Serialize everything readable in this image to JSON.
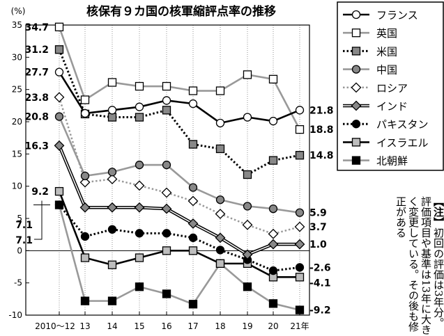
{
  "chart_data": {
    "type": "line",
    "title": "核保有９カ国の核軍縮評点率の推移",
    "y_unit": "(%)",
    "ylim": [
      -10,
      35
    ],
    "y_ticks": [
      "35",
      "30",
      "25",
      "20",
      "15",
      "10",
      "5",
      "0",
      "-5",
      "-10"
    ],
    "x_ticks": [
      "2010～12",
      "13",
      "14",
      "15",
      "16",
      "17",
      "18",
      "19",
      "20",
      "21年"
    ],
    "grid": "vertical dotted",
    "legend_position": "top-right",
    "series": [
      {
        "name": "フランス",
        "marker": "circle-open",
        "line": "solid-black",
        "color": "#000000",
        "values": [
          27.7,
          21.3,
          21.8,
          22.3,
          23.3,
          22.8,
          19.8,
          20.7,
          20.1,
          21.8
        ],
        "start_label": "27.7",
        "end_label": "21.8"
      },
      {
        "name": "英国",
        "marker": "square-open",
        "line": "solid-gray",
        "color": "#a0a0a0",
        "values": [
          34.7,
          23.4,
          26.1,
          25.5,
          25.5,
          24.8,
          24.8,
          27.3,
          26.6,
          18.8
        ],
        "start_label": "34.7",
        "end_label": "18.8"
      },
      {
        "name": "米国",
        "marker": "square-gray",
        "line": "dotted",
        "color": "#000000",
        "values": [
          31.2,
          21.2,
          20.7,
          20.7,
          21.8,
          16.5,
          15.8,
          11.8,
          14.0,
          14.8
        ],
        "start_label": "31.2",
        "end_label": "14.8"
      },
      {
        "name": "中国",
        "marker": "circle-gray",
        "line": "solid-gray",
        "color": "#7a7a7a",
        "values": [
          20.8,
          11.6,
          12.2,
          13.3,
          13.3,
          9.8,
          7.9,
          6.9,
          6.5,
          5.9
        ],
        "start_label": "20.8",
        "end_label": "5.9"
      },
      {
        "name": "ロシア",
        "marker": "diamond-open",
        "line": "dotted-gray",
        "color": "#909090",
        "values": [
          23.8,
          10.6,
          11.1,
          10.1,
          9.0,
          7.7,
          5.7,
          4.0,
          2.6,
          3.7
        ],
        "start_label": "23.8",
        "end_label": "3.7"
      },
      {
        "name": "インド",
        "marker": "diamond-gray",
        "line": "double",
        "color": "#000000",
        "values": [
          16.3,
          6.7,
          6.7,
          6.7,
          6.5,
          4.2,
          2.0,
          -0.6,
          1.0,
          1.0
        ],
        "start_label": "16.3",
        "end_label": "1.0"
      },
      {
        "name": "パキスタン",
        "marker": "circle-black",
        "line": "dotted",
        "color": "#000000",
        "values": [
          7.1,
          2.2,
          3.3,
          2.7,
          2.7,
          2.0,
          0.1,
          -1.4,
          -3.1,
          -2.6
        ],
        "start_label": "7.1",
        "end_label": "-2.6"
      },
      {
        "name": "イスラエル",
        "marker": "square-lightgray",
        "line": "solid-black",
        "color": "#000000",
        "values": [
          9.2,
          -1.1,
          -2.2,
          -1.1,
          0.0,
          0.0,
          -2.0,
          -2.0,
          -4.1,
          -4.1
        ],
        "start_label": "9.2",
        "end_label": "-4.1"
      },
      {
        "name": "北朝鮮",
        "marker": "square-black",
        "line": "solid-gray",
        "color": "#999999",
        "values": [
          7.1,
          -7.8,
          -7.8,
          -5.6,
          -6.7,
          -8.3,
          -2.0,
          -5.6,
          -8.2,
          -9.2
        ],
        "start_label": "7.1",
        "end_label": "-9.2"
      }
    ]
  },
  "note": {
    "tag": "【注】",
    "text": "初回の評価は3年分。評価項目や基準は13年に大きく変更している。その後も修正がある"
  }
}
